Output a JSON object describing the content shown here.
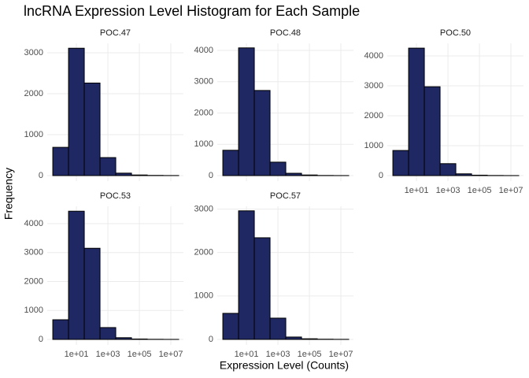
{
  "title": "lncRNA Expression Level Histogram for Each Sample",
  "x_label": "Expression Level (Counts)",
  "y_label": "Frequency",
  "chart_data": [
    {
      "type": "histogram",
      "title": "POC.47",
      "color": "#1f2862",
      "log_x": true,
      "grid": true,
      "x_tick_labels": false,
      "bins": [
        0.316,
        3.16,
        31.6,
        316,
        3162,
        31623,
        316228,
        3162278,
        31622777
      ],
      "values": [
        690,
        3110,
        2260,
        440,
        60,
        15,
        5,
        2
      ],
      "xlim": [
        0.14,
        63000000
      ],
      "ylim": [
        -135,
        3230
      ],
      "xticks": [
        {
          "value": 10,
          "label": "1e+01"
        },
        {
          "value": 1000,
          "label": "1e+03"
        },
        {
          "value": 100000,
          "label": "1e+05"
        },
        {
          "value": 10000000,
          "label": "1e+07"
        }
      ],
      "yticks": [
        0,
        1000,
        2000,
        3000
      ]
    },
    {
      "type": "histogram",
      "title": "POC.48",
      "color": "#1f2862",
      "log_x": true,
      "grid": true,
      "x_tick_labels": false,
      "bins": [
        0.316,
        3.16,
        31.6,
        316,
        3162,
        31623,
        316228,
        3162278,
        31622777
      ],
      "values": [
        810,
        4080,
        2720,
        430,
        75,
        20,
        5,
        2
      ],
      "xlim": [
        0.14,
        63000000
      ],
      "ylim": [
        -176,
        4226
      ],
      "xticks": [
        {
          "value": 10,
          "label": "1e+01"
        },
        {
          "value": 1000,
          "label": "1e+03"
        },
        {
          "value": 100000,
          "label": "1e+05"
        },
        {
          "value": 10000000,
          "label": "1e+07"
        }
      ],
      "yticks": [
        0,
        1000,
        2000,
        3000,
        4000
      ]
    },
    {
      "type": "histogram",
      "title": "POC.50",
      "color": "#1f2862",
      "log_x": true,
      "grid": true,
      "x_tick_labels": true,
      "bins": [
        0.316,
        3.16,
        31.6,
        316,
        3162,
        31623,
        316228,
        3162278,
        31622777
      ],
      "values": [
        840,
        4260,
        2970,
        400,
        60,
        15,
        5,
        2
      ],
      "xlim": [
        0.14,
        63000000
      ],
      "ylim": [
        -184,
        4421
      ],
      "xticks": [
        {
          "value": 10,
          "label": "1e+01"
        },
        {
          "value": 1000,
          "label": "1e+03"
        },
        {
          "value": 100000,
          "label": "1e+05"
        },
        {
          "value": 10000000,
          "label": "1e+07"
        }
      ],
      "yticks": [
        0,
        1000,
        2000,
        3000,
        4000
      ]
    },
    {
      "type": "histogram",
      "title": "POC.53",
      "color": "#1f2862",
      "log_x": true,
      "grid": true,
      "x_tick_labels": true,
      "bins": [
        0.316,
        3.16,
        31.6,
        316,
        3162,
        31623,
        316228,
        3162278,
        31622777
      ],
      "values": [
        680,
        4430,
        3150,
        410,
        60,
        15,
        5,
        2
      ],
      "xlim": [
        0.14,
        63000000
      ],
      "ylim": [
        -190,
        4599
      ],
      "xticks": [
        {
          "value": 10,
          "label": "1e+01"
        },
        {
          "value": 1000,
          "label": "1e+03"
        },
        {
          "value": 100000,
          "label": "1e+05"
        },
        {
          "value": 10000000,
          "label": "1e+07"
        }
      ],
      "yticks": [
        0,
        1000,
        2000,
        3000,
        4000
      ]
    },
    {
      "type": "histogram",
      "title": "POC.57",
      "color": "#1f2862",
      "log_x": true,
      "grid": true,
      "x_tick_labels": true,
      "bins": [
        0.316,
        3.16,
        31.6,
        316,
        3162,
        31623,
        316228,
        3162278,
        31622777
      ],
      "values": [
        600,
        2960,
        2340,
        490,
        55,
        15,
        5,
        2
      ],
      "xlim": [
        0.14,
        63000000
      ],
      "ylim": [
        -127,
        3064
      ],
      "xticks": [
        {
          "value": 10,
          "label": "1e+01"
        },
        {
          "value": 1000,
          "label": "1e+03"
        },
        {
          "value": 100000,
          "label": "1e+05"
        },
        {
          "value": 10000000,
          "label": "1e+07"
        }
      ],
      "yticks": [
        0,
        1000,
        2000,
        3000
      ]
    }
  ]
}
